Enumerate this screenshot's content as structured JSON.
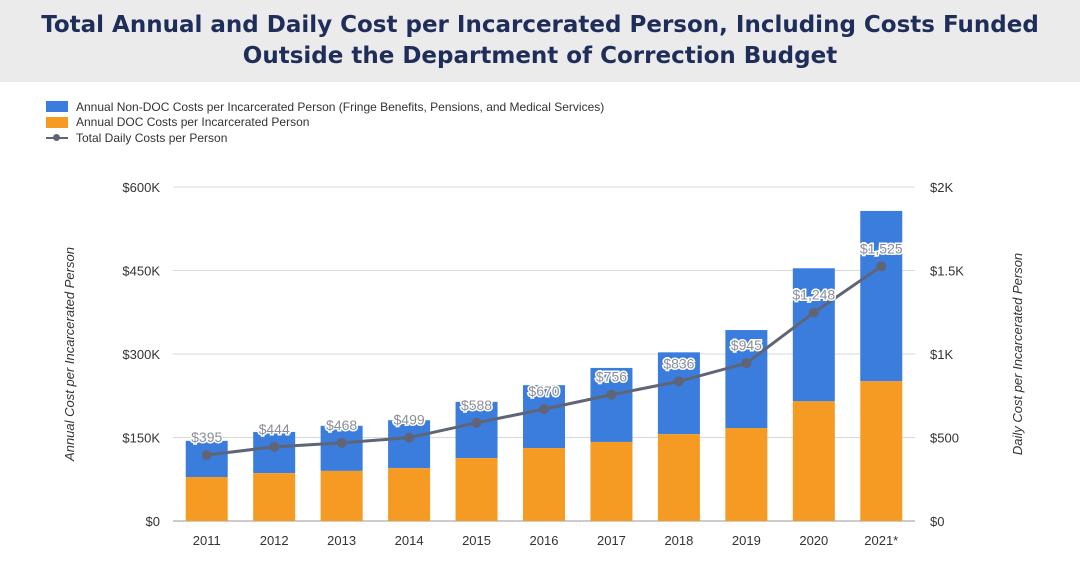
{
  "title": "Total Annual and Daily Cost per Incarcerated Person, Including Costs Funded Outside the Department of Correction Budget",
  "colors": {
    "non_doc": "#3b7ddd",
    "doc": "#f59a23",
    "daily": "#5f6577",
    "title": "#1f2d5a"
  },
  "chart_data": {
    "type": "bar",
    "title": "Total Annual and Daily Cost per Incarcerated Person, Including Costs Funded Outside the Department of Correction Budget",
    "categories": [
      "2011",
      "2012",
      "2013",
      "2014",
      "2015",
      "2016",
      "2017",
      "2018",
      "2019",
      "2020",
      "2021*"
    ],
    "series": [
      {
        "name": "Annual DOC Costs per Incarcerated Person",
        "axis": "left",
        "stack": true,
        "values": [
          79,
          86,
          90,
          95,
          113,
          131,
          142,
          156,
          167,
          215,
          251
        ]
      },
      {
        "name": "Annual Non-DOC Costs per Incarcerated Person (Fringe Benefits, Pensions, and Medical Services)",
        "axis": "left",
        "stack": true,
        "values": [
          65,
          74,
          81,
          86,
          101,
          113,
          133,
          147,
          176,
          239,
          306
        ]
      },
      {
        "name": "Total Daily Costs per Person",
        "type": "line",
        "axis": "right",
        "values": [
          395,
          444,
          468,
          499,
          588,
          670,
          756,
          836,
          945,
          1248,
          1525
        ]
      }
    ],
    "data_labels": [
      "$395",
      "$444",
      "$468",
      "$499",
      "$588",
      "$670",
      "$756",
      "$836",
      "$945",
      "$1,248",
      "$1,525"
    ],
    "legend_order": [
      1,
      0,
      2
    ],
    "legend_position": "top-left",
    "ylabel": "Annual Cost per Incarcerated Person",
    "ylabel_right": "Daily Cost per Incarcerated Person",
    "ylim": [
      0,
      600
    ],
    "ylim_right": [
      0,
      2000
    ],
    "yticks": [
      "$0",
      "$150K",
      "$300K",
      "$450K",
      "$600K"
    ],
    "yticks_right": [
      "$0",
      "$500",
      "$1K",
      "$1.5K",
      "$2K"
    ],
    "grid": true
  }
}
